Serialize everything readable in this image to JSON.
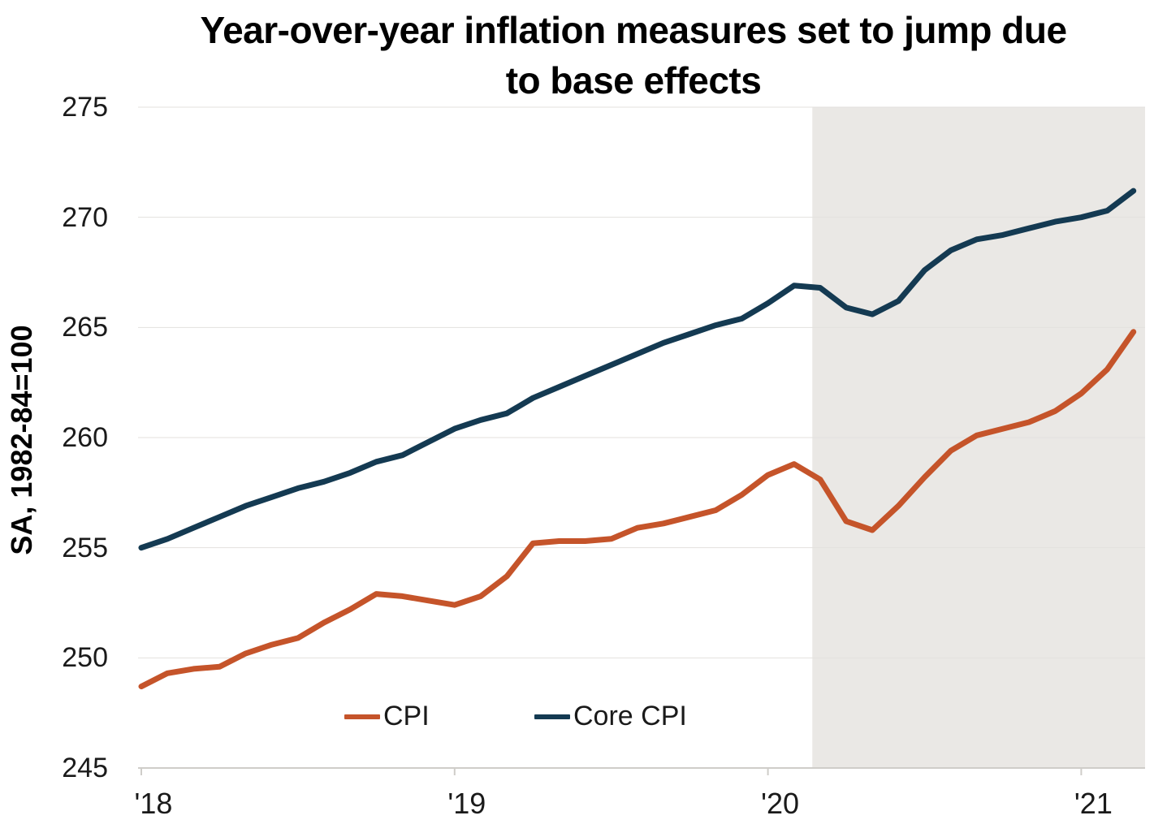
{
  "title": {
    "full": "Year-over-year inflation measures set to jump due to base effects",
    "lines": [
      "Year-over-year inflation measures set to jump due",
      "to base effects"
    ]
  },
  "y_axis": {
    "title": "SA, 1982-84=100",
    "ticks": [
      275,
      270,
      265,
      260,
      255,
      250,
      245
    ],
    "min": 245,
    "max": 275
  },
  "x_axis": {
    "ticks": [
      "'18",
      "'19",
      "'20",
      "'21"
    ],
    "tick_month_indices": [
      0,
      12,
      24,
      36
    ]
  },
  "legend": [
    {
      "label": "CPI",
      "color": "#c5542a"
    },
    {
      "label": "Core CPI",
      "color": "#143a52"
    }
  ],
  "colors": {
    "cpi_line": "#c5542a",
    "core_cpi_line": "#143a52",
    "shaded_region": "#eae8e5",
    "gridline": "#e3e1de",
    "axis": "#cfcdc9",
    "tick_text": "#1a1a1a",
    "title_text": "#000000",
    "background": "#ffffff"
  },
  "chart_data": {
    "type": "line",
    "title": "Year-over-year inflation measures set to jump due to base effects",
    "xlabel": "",
    "ylabel": "SA, 1982-84=100",
    "ylim": [
      245,
      275
    ],
    "y_ticks": [
      245,
      250,
      255,
      260,
      265,
      270,
      275
    ],
    "grid": true,
    "legend_position": "bottom-inside",
    "x": [
      "2018-01",
      "2018-02",
      "2018-03",
      "2018-04",
      "2018-05",
      "2018-06",
      "2018-07",
      "2018-08",
      "2018-09",
      "2018-10",
      "2018-11",
      "2018-12",
      "2019-01",
      "2019-02",
      "2019-03",
      "2019-04",
      "2019-05",
      "2019-06",
      "2019-07",
      "2019-08",
      "2019-09",
      "2019-10",
      "2019-11",
      "2019-12",
      "2020-01",
      "2020-02",
      "2020-03",
      "2020-04",
      "2020-05",
      "2020-06",
      "2020-07",
      "2020-08",
      "2020-09",
      "2020-10",
      "2020-11",
      "2020-12",
      "2021-01",
      "2021-02",
      "2021-03"
    ],
    "series": [
      {
        "name": "CPI",
        "color": "#c5542a",
        "values": [
          248.7,
          249.3,
          249.5,
          249.6,
          250.2,
          250.6,
          250.9,
          251.6,
          252.2,
          252.9,
          252.8,
          252.6,
          252.4,
          252.8,
          253.7,
          255.2,
          255.3,
          255.3,
          255.4,
          255.9,
          256.1,
          256.4,
          256.7,
          257.4,
          258.3,
          258.8,
          258.1,
          256.2,
          255.8,
          256.9,
          258.2,
          259.4,
          260.1,
          260.4,
          260.7,
          261.2,
          262.0,
          263.1,
          264.8
        ]
      },
      {
        "name": "Core CPI",
        "color": "#143a52",
        "values": [
          255.0,
          255.4,
          255.9,
          256.4,
          256.9,
          257.3,
          257.7,
          258.0,
          258.4,
          258.9,
          259.2,
          259.8,
          260.4,
          260.8,
          261.1,
          261.8,
          262.3,
          262.8,
          263.3,
          263.8,
          264.3,
          264.7,
          265.1,
          265.4,
          266.1,
          266.9,
          266.8,
          265.9,
          265.6,
          266.2,
          267.6,
          268.5,
          269.0,
          269.2,
          269.5,
          269.8,
          270.0,
          270.3,
          271.2
        ]
      }
    ],
    "shaded_region": {
      "from_month": "2020-02",
      "from_month_index": 25.7,
      "to": "chart-end",
      "color": "#eae8e5"
    }
  }
}
